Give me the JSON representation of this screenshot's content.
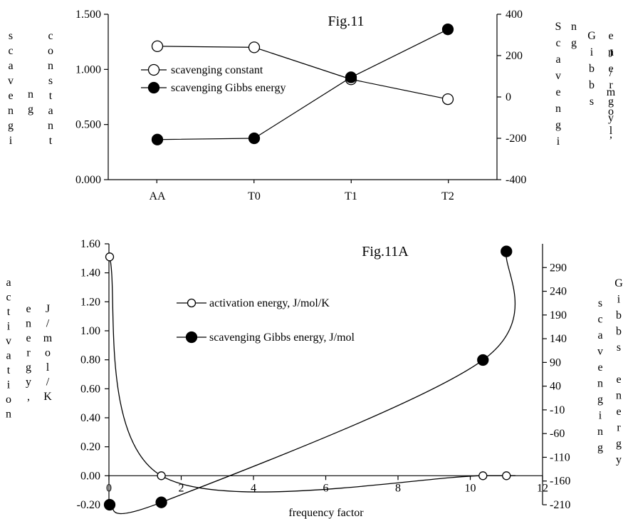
{
  "chart_data": [
    {
      "type": "line",
      "title": "Fig.11",
      "categories": [
        "AA",
        "T0",
        "T1",
        "T2"
      ],
      "ylabel": "scavenging constant",
      "ylabel_columns": [
        "scavengi",
        "ng",
        "constant"
      ],
      "y2label": "Scavenging Gibbs energy, J/mol",
      "y2label_columns": [
        "Scavengi",
        "ng",
        "Gibbs",
        "energy,",
        "J/mol"
      ],
      "ylim": [
        0,
        1.5
      ],
      "y2lim": [
        -400,
        400
      ],
      "y_ticks": [
        "0.000",
        "0.500",
        "1.000",
        "1.500"
      ],
      "y2_ticks": [
        "-400",
        "-200",
        "0",
        "200",
        "400"
      ],
      "series": [
        {
          "name": "scavenging constant",
          "axis": "left",
          "marker": "open",
          "values": [
            1.21,
            1.2,
            0.91,
            0.73
          ]
        },
        {
          "name": "scavenging Gibbs energy",
          "axis": "right",
          "marker": "filled",
          "values": [
            -206,
            -200,
            95,
            327
          ]
        }
      ],
      "grid": false,
      "legend_placement": "upper-center"
    },
    {
      "type": "line",
      "title": "Fig.11A",
      "xlabel": "frequency factor",
      "xlim": [
        0,
        12
      ],
      "x_ticks": [
        "0",
        "2",
        "4",
        "6",
        "8",
        "10",
        "12"
      ],
      "ylabel": "activation energy, J/mol/K",
      "ylabel_columns": [
        "activation",
        "energy,",
        "J/mol/K"
      ],
      "y2label": "scavenging Gibbs energy",
      "y2label_columns": [
        "scavenging",
        "Gibbs energy"
      ],
      "ylim": [
        -0.2,
        1.6
      ],
      "y2lim": [
        -210,
        340
      ],
      "y_ticks": [
        "-0.20",
        "0.00",
        "0.20",
        "0.40",
        "0.60",
        "0.80",
        "1.00",
        "1.20",
        "1.40",
        "1.60"
      ],
      "y2_ticks": [
        "-210",
        "-160",
        "-110",
        "-60",
        "-10",
        "40",
        "90",
        "140",
        "190",
        "240",
        "290"
      ],
      "series": [
        {
          "name": "activation energy, J/mol/K",
          "axis": "left",
          "marker": "open",
          "x": [
            0.02,
            1.45,
            10.35,
            11.0
          ],
          "y": [
            1.51,
            0.0,
            0.0,
            0.0
          ]
        },
        {
          "name": "scavenging Gibbs energy, J/mol",
          "axis": "right",
          "marker": "filled",
          "x": [
            0.02,
            1.45,
            10.35,
            11.0
          ],
          "y": [
            -210,
            -205,
            95,
            324
          ]
        }
      ],
      "grid": false,
      "legend_placement": "upper-left"
    }
  ]
}
